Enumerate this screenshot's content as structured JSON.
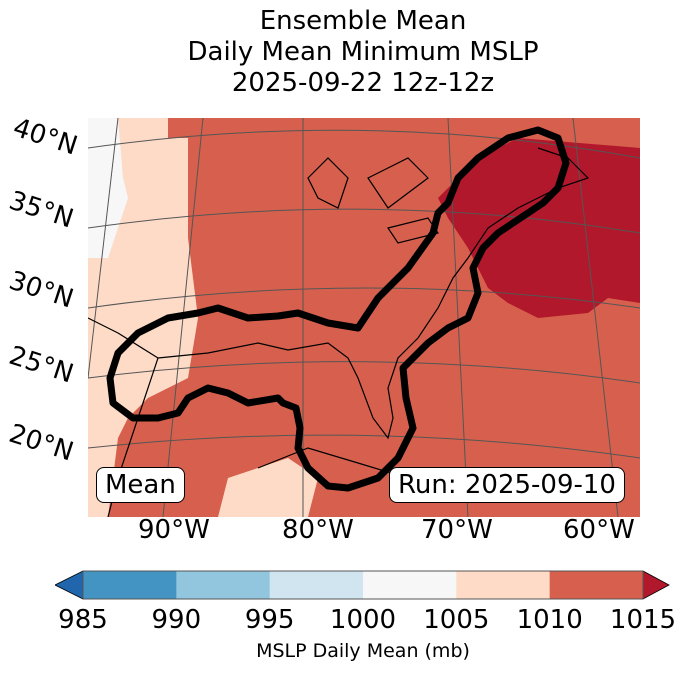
{
  "title": {
    "line1": "Ensemble Mean",
    "line2": "Daily Mean Minimum MSLP",
    "line3": "2025-09-22 12z-12z"
  },
  "lat_labels": [
    "40°N",
    "35°N",
    "30°N",
    "25°N",
    "20°N"
  ],
  "lon_labels": [
    "90°W",
    "80°W",
    "70°W",
    "60°W"
  ],
  "mean_label": "Mean",
  "run_label": "Run: 2025-09-10",
  "colorbar": {
    "label": "MSLP Daily Mean (mb)",
    "ticks": [
      "985",
      "990",
      "995",
      "1000",
      "1005",
      "1010",
      "1015"
    ],
    "colors": [
      "#2166ac",
      "#4393c3",
      "#92c5de",
      "#d1e5f0",
      "#f7f7f7",
      "#fddbc7",
      "#d6604d",
      "#b2182b"
    ]
  }
}
